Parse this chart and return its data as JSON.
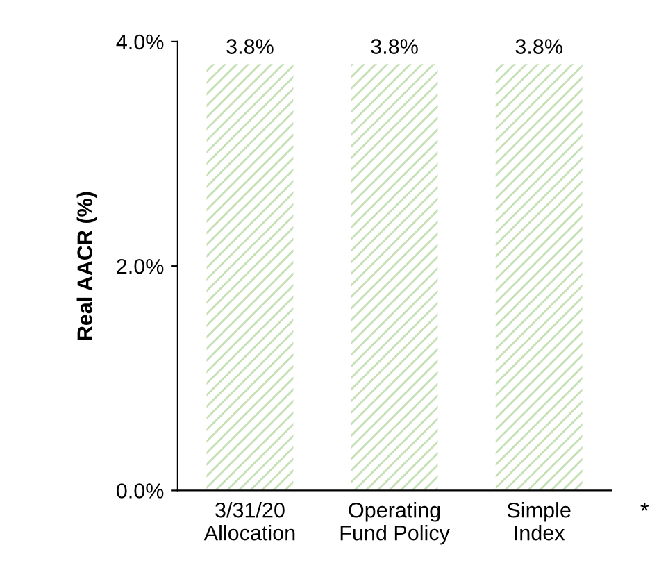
{
  "chart_data": {
    "type": "bar",
    "ylabel": "Real AACR (%)",
    "categories": [
      "3/31/20\nAllocation",
      "Operating\nFund Policy",
      "Simple\nIndex"
    ],
    "values": [
      3.8,
      3.8,
      3.8
    ],
    "color": "#c5e0b4",
    "value_labels": [
      "3.8%",
      "3.8%",
      "3.8%"
    ],
    "ylim": [
      0,
      4
    ],
    "yticks": [
      {
        "value": 0,
        "label": "0.0%"
      },
      {
        "value": 2,
        "label": "2.0%"
      },
      {
        "value": 4,
        "label": "4.0%"
      }
    ],
    "annotations": [
      "*"
    ],
    "grid": false,
    "legend": false
  }
}
